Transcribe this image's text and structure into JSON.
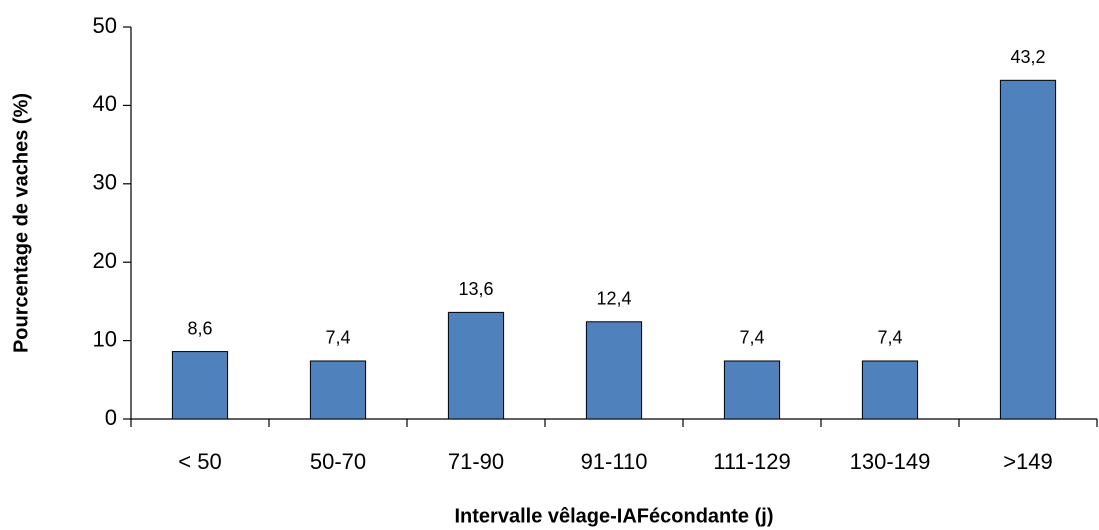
{
  "chart_data": {
    "type": "bar",
    "x_label": "Intervalle vêlage-IAFécondante (j)",
    "y_label": "Pourcentage de vaches (%)",
    "categories": [
      "< 50",
      "50-70",
      "71-90",
      "91-110",
      "111-129",
      "130-149",
      ">149"
    ],
    "values": [
      8.6,
      7.4,
      13.6,
      12.4,
      7.4,
      7.4,
      43.2
    ],
    "value_labels": [
      "8,6",
      "7,4",
      "13,6",
      "12,4",
      "7,4",
      "7,4",
      "43,2"
    ],
    "color": "#4f81bd",
    "ylim": [
      0,
      50
    ],
    "yticks": [
      0,
      10,
      20,
      30,
      40,
      50
    ],
    "grid": false
  }
}
